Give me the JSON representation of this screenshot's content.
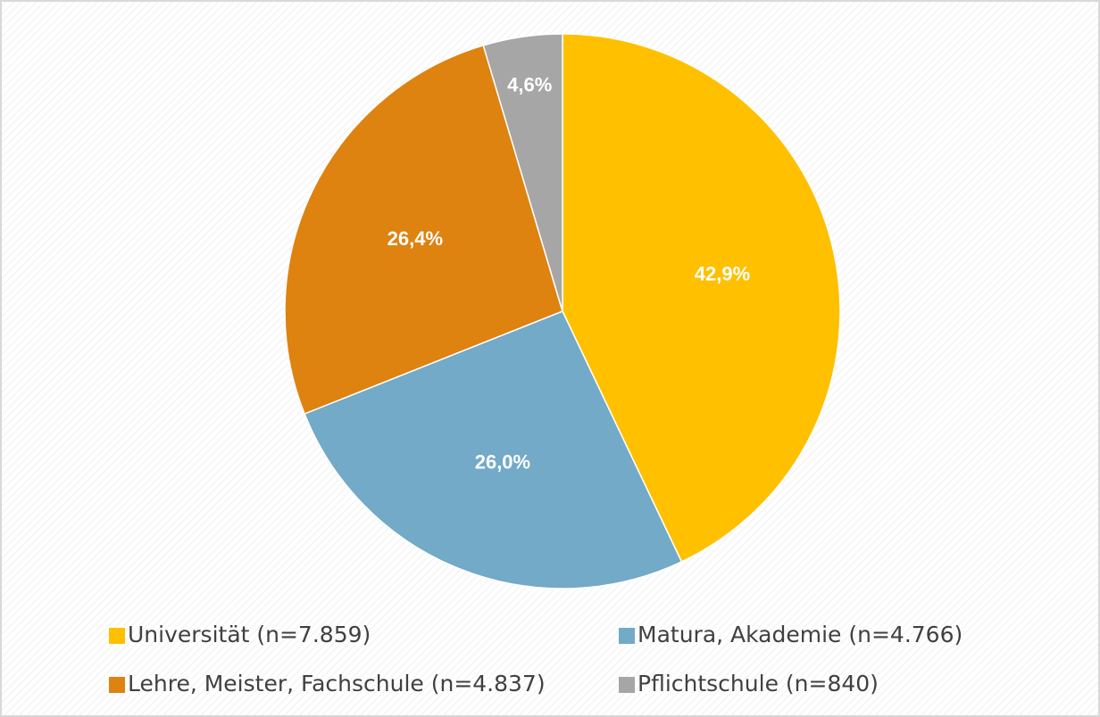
{
  "chart_data": {
    "type": "pie",
    "categories": [
      "Universität (n=7.859)",
      "Matura, Akademie (n=4.766)",
      "Lehre, Meister, Fachschule (n=4.837)",
      "Pflichtschule (n=840)"
    ],
    "values": [
      42.9,
      26.0,
      26.4,
      4.6
    ],
    "value_labels": [
      "42,9%",
      "26,0%",
      "26,4%",
      "4,6%"
    ],
    "colors": [
      "#ffc000",
      "#72aac8",
      "#de8210",
      "#a6a6a6"
    ]
  }
}
